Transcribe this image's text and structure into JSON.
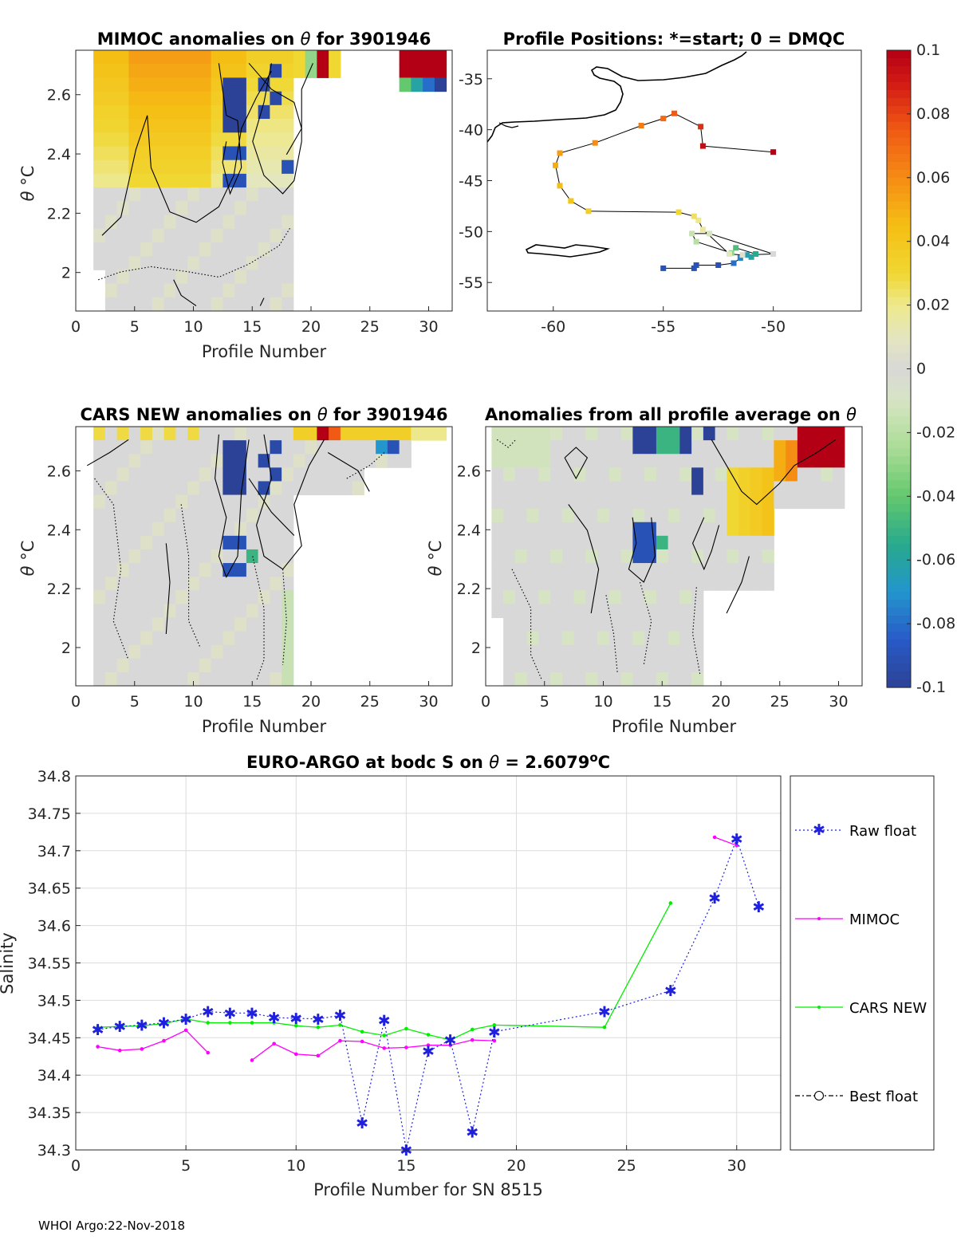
{
  "footer": "WHOI Argo:22-Nov-2018",
  "colorbar": {
    "min": -0.1,
    "max": 0.1,
    "tick_labels": [
      "0.1",
      "0.08",
      "0.06",
      "0.04",
      "0.02",
      "0",
      "-0.02",
      "-0.04",
      "-0.06",
      "-0.08",
      "-0.1"
    ],
    "tick_values": [
      0.1,
      0.08,
      0.06,
      0.04,
      0.02,
      0,
      -0.02,
      -0.04,
      -0.06,
      -0.08,
      -0.1
    ]
  },
  "chart_data": [
    {
      "id": "mimoc",
      "type": "heatmap",
      "title_prefix": "MIMOC anomalies on ",
      "title_symbol": "θ",
      "title_suffix": "  for 3901946",
      "xlabel": "Profile Number",
      "ylabel_symbol": "θ",
      "ylabel_unit": " °C",
      "xlim": [
        0,
        32
      ],
      "ylim": [
        1.87,
        2.75
      ],
      "xticks": [
        0,
        5,
        10,
        15,
        20,
        25,
        30
      ],
      "yticks": [
        2,
        2.2,
        2.4,
        2.6
      ],
      "ytick_labels": [
        "2",
        "2.2",
        "2.4",
        "2.6"
      ]
    },
    {
      "id": "positions",
      "type": "scatter",
      "title": "Profile Positions: *=start; 0 = DMQC",
      "xlim": [
        -63,
        -46
      ],
      "ylim": [
        -57.8,
        -32.2
      ],
      "xticks": [
        -60,
        -55,
        -50
      ],
      "yticks": [
        -35,
        -40,
        -45,
        -50,
        -55
      ],
      "lon": [
        -55,
        -53.6,
        -53.5,
        -52.5,
        -51.8,
        -51.5,
        -51.2,
        -51,
        -50.8,
        -51.7,
        -51.9,
        -53.5,
        -53.7,
        -52.9,
        -50,
        -51.4,
        -52,
        -53.2,
        -53.4,
        -53.6,
        -54.3,
        -58.4,
        -59.2,
        -59.7,
        -59.9,
        -59.7,
        -58.1,
        -56,
        -55,
        -54.5,
        -53.3,
        -53.2,
        -50
      ],
      "lat": [
        -53.6,
        -53.6,
        -53.3,
        -53.3,
        -53.1,
        -52.6,
        -52.3,
        -52.5,
        -52.2,
        -51.6,
        -52.1,
        -51,
        -50.2,
        -50.2,
        -52.2,
        -52.3,
        -52.2,
        -49.8,
        -48.9,
        -48.5,
        -48.1,
        -48,
        -47,
        -45.5,
        -43.5,
        -42.3,
        -41.3,
        -39.6,
        -38.9,
        -38.4,
        -39.7,
        -41.6,
        -42.2
      ],
      "anomaly": [
        -0.09,
        -0.09,
        -0.09,
        -0.09,
        -0.08,
        -0.075,
        -0.065,
        -0.06,
        -0.055,
        -0.045,
        -0.03,
        -0.02,
        -0.015,
        -0.01,
        0.0,
        0.005,
        0.01,
        0.015,
        0.02,
        0.025,
        0.03,
        0.035,
        0.04,
        0.045,
        0.05,
        0.055,
        0.06,
        0.065,
        0.07,
        0.075,
        0.085,
        0.095,
        0.1
      ]
    },
    {
      "id": "cars",
      "type": "heatmap",
      "title_prefix": "CARS NEW anomalies on ",
      "title_symbol": "θ",
      "title_suffix": " for 3901946",
      "xlabel": "Profile Number",
      "ylabel_symbol": "θ",
      "ylabel_unit": " °C",
      "xlim": [
        0,
        32
      ],
      "ylim": [
        1.87,
        2.75
      ],
      "xticks": [
        0,
        5,
        10,
        15,
        20,
        25,
        30
      ],
      "yticks": [
        2,
        2.2,
        2.4,
        2.6
      ],
      "ytick_labels": [
        "2",
        "2.2",
        "2.4",
        "2.6"
      ]
    },
    {
      "id": "avg",
      "type": "heatmap",
      "title_prefix": "Anomalies from all profile average on ",
      "title_symbol": "θ",
      "title_suffix": "",
      "xlabel": "Profile Number",
      "ylabel_symbol": "θ",
      "ylabel_unit": " °C",
      "xlim": [
        0,
        32
      ],
      "ylim": [
        1.87,
        2.75
      ],
      "xticks": [
        0,
        5,
        10,
        15,
        20,
        25,
        30
      ],
      "yticks": [
        2,
        2.2,
        2.4,
        2.6
      ],
      "ytick_labels": [
        "2",
        "2.2",
        "2.4",
        "2.6"
      ]
    },
    {
      "id": "salinity",
      "type": "line",
      "title_prefix": "EURO-ARGO at bodc S on ",
      "title_symbol": "θ",
      "title_value": " = 2.6079",
      "title_sup": "o",
      "title_unit": "C",
      "xlabel": "Profile Number for SN 8515",
      "ylabel": "Salinity",
      "xlim": [
        0,
        32
      ],
      "ylim": [
        34.3,
        34.8
      ],
      "xticks": [
        0,
        5,
        10,
        15,
        20,
        25,
        30
      ],
      "yticks": [
        34.3,
        34.35,
        34.4,
        34.45,
        34.5,
        34.55,
        34.6,
        34.65,
        34.7,
        34.75,
        34.8
      ],
      "ytick_labels": [
        "34.3",
        "34.35",
        "34.4",
        "34.45",
        "34.5",
        "34.55",
        "34.6",
        "34.65",
        "34.7",
        "34.75",
        "34.8"
      ],
      "legend": [
        "Raw float",
        "MIMOC",
        "CARS NEW",
        "Best float"
      ],
      "series": [
        {
          "name": "Raw float",
          "color": "#1f1fe0",
          "x": [
            1,
            2,
            3,
            4,
            5,
            6,
            7,
            8,
            9,
            10,
            11,
            12,
            13,
            14,
            15,
            16,
            17,
            18,
            19,
            24,
            27,
            29,
            30,
            31
          ],
          "y": [
            34.461,
            34.465,
            34.467,
            34.47,
            34.475,
            34.485,
            34.483,
            34.483,
            34.477,
            34.476,
            34.475,
            34.48,
            34.336,
            34.473,
            34.3,
            34.432,
            34.447,
            34.324,
            34.458,
            34.485,
            34.513,
            34.637,
            34.716,
            34.625
          ]
        },
        {
          "name": "MIMOC",
          "color": "#ff00ff",
          "segments": [
            {
              "x": [
                1,
                2,
                3,
                4,
                5,
                6
              ],
              "y": [
                34.438,
                34.433,
                34.435,
                34.446,
                34.46,
                34.43
              ]
            },
            {
              "x": [
                8,
                9,
                10,
                11,
                12,
                13,
                14,
                15,
                16,
                17,
                18,
                19
              ],
              "y": [
                34.42,
                34.442,
                34.428,
                34.426,
                34.446,
                34.445,
                34.436,
                34.437,
                34.44,
                34.44,
                34.447,
                34.446
              ]
            },
            {
              "x": [
                29,
                30
              ],
              "y": [
                34.718,
                34.707
              ]
            }
          ]
        },
        {
          "name": "CARS NEW",
          "color": "#00ee00",
          "x": [
            1,
            2,
            3,
            4,
            5,
            6,
            7,
            8,
            9,
            10,
            11,
            12,
            13,
            14,
            15,
            16,
            17,
            18,
            19,
            24,
            27
          ],
          "y": [
            34.464,
            34.465,
            34.466,
            34.469,
            34.475,
            34.47,
            34.47,
            34.47,
            34.47,
            34.466,
            34.464,
            34.467,
            34.458,
            34.453,
            34.462,
            34.454,
            34.447,
            34.461,
            34.467,
            34.464,
            34.63
          ]
        }
      ]
    }
  ]
}
